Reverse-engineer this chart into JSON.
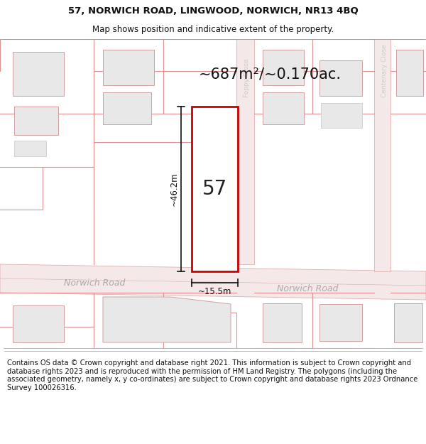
{
  "title_line1": "57, NORWICH ROAD, LINGWOOD, NORWICH, NR13 4BQ",
  "title_line2": "Map shows position and indicative extent of the property.",
  "area_label": "~687m²/~0.170ac.",
  "number_label": "57",
  "dim_vertical": "~46.2m",
  "dim_horizontal": "~15.5m",
  "road_label_left": "Norwich Road",
  "road_label_right": "Norwich Road",
  "road_label_vertical_right": "Centenary Close",
  "road_label_vertical_left": "Foppy Close",
  "footer_text": "Contains OS data © Crown copyright and database right 2021. This information is subject to Crown copyright and database rights 2023 and is reproduced with the permission of HM Land Registry. The polygons (including the associated geometry, namely x, y co-ordinates) are subject to Crown copyright and database rights 2023 Ordnance Survey 100026316.",
  "bg_color": "#ffffff",
  "map_bg": "#fdf6f6",
  "plot_color_red": "#cc0000",
  "building_fill": "#e8e8e8",
  "road_fill": "#f5e8e8",
  "road_edge": "#ddb0b0",
  "plot_line_color": "#e09090",
  "text_dark": "#111111",
  "text_road": "#aaaaaa",
  "text_close": "#cccccc",
  "dim_color": "#111111",
  "title_fontsize": 9.5,
  "subtitle_fontsize": 8.5,
  "footer_fontsize": 7.2,
  "area_fontsize": 15,
  "number_fontsize": 20,
  "road_text_fontsize": 9,
  "dim_fontsize": 8.5,
  "close_fontsize": 6.5
}
